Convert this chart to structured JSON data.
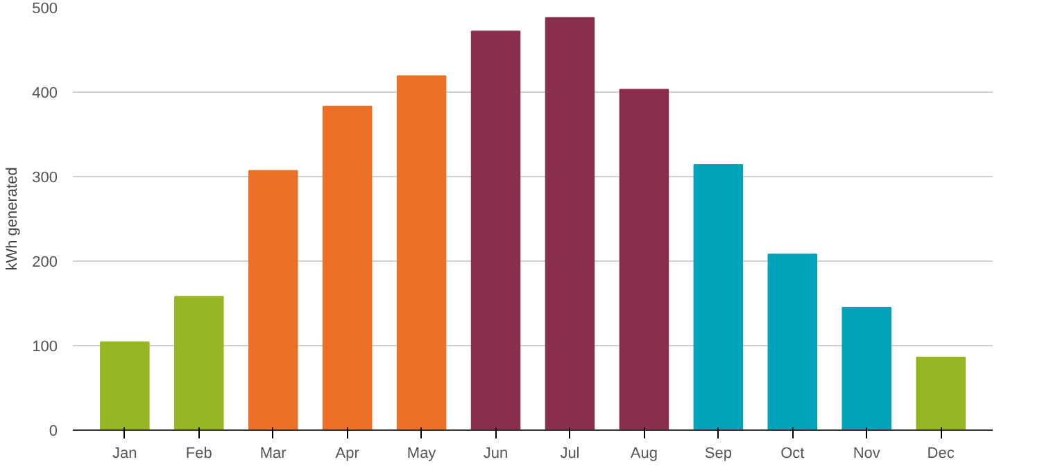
{
  "chart_data": {
    "type": "bar",
    "ylabel": "kWh generated",
    "categories": [
      "Jan",
      "Feb",
      "Mar",
      "Apr",
      "May",
      "Jun",
      "Jul",
      "Aug",
      "Sep",
      "Oct",
      "Nov",
      "Dec"
    ],
    "values": [
      104,
      158,
      307,
      383,
      419,
      472,
      488,
      403,
      314,
      208,
      145,
      86
    ],
    "colors": [
      "#97b623",
      "#97b623",
      "#ec7026",
      "#ec7026",
      "#ec7026",
      "#8b2f4e",
      "#8b2f4e",
      "#8b2f4e",
      "#00a3b9",
      "#00a3b9",
      "#00a3b9",
      "#97b623"
    ],
    "ylim": [
      0,
      500
    ],
    "yticks": [
      0,
      100,
      200,
      300,
      400,
      500
    ],
    "grid": "y"
  }
}
